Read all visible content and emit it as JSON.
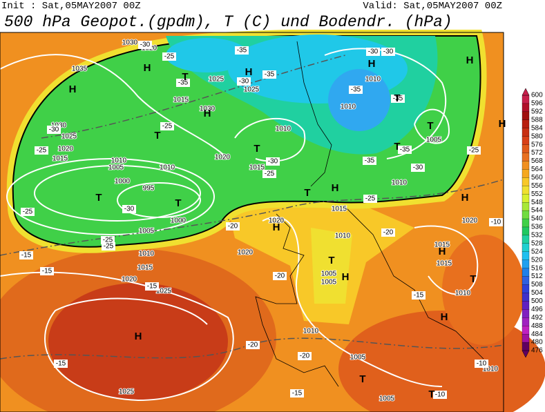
{
  "header": {
    "init": "Init : Sat,05MAY2007 00Z",
    "valid": "Valid: Sat,05MAY2007 00Z",
    "title": "500 hPa Geopot.(gpdm), T (C) und Bodendr. (hPa)"
  },
  "map": {
    "pressure_labels": [
      "1030",
      "1035",
      "1030",
      "1025",
      "1020",
      "1015",
      "1010",
      "1005",
      "1000",
      "995",
      "1000",
      "1005",
      "1010",
      "1015",
      "1020",
      "1025",
      "1025",
      "1020",
      "1025",
      "1030",
      "1015",
      "1010",
      "1020",
      "1015",
      "1010",
      "1025",
      "1010",
      "1010",
      "1005",
      "1010",
      "1015",
      "1020",
      "1020",
      "1010",
      "1005",
      "1005",
      "1015",
      "1015",
      "1010",
      "1010",
      "1005",
      "1005",
      "1010",
      "1020"
    ],
    "temperature_labels": [
      "-30",
      "-25",
      "-35",
      "-35",
      "-30",
      "-35",
      "-25",
      "-30",
      "-25",
      "-35",
      "-35",
      "-30",
      "-30",
      "-35",
      "-30",
      "-25",
      "-35",
      "-30",
      "-25",
      "-30",
      "-25",
      "-25",
      "-25",
      "-20",
      "-25",
      "-20",
      "-15",
      "-15",
      "-15",
      "-20",
      "-15",
      "-20",
      "-20",
      "-15",
      "-10",
      "-15",
      "-10",
      "-10"
    ],
    "centers": [
      "H",
      "H",
      "T",
      "H",
      "T",
      "H",
      "T",
      "T",
      "T",
      "H",
      "H",
      "T",
      "H",
      "T",
      "H",
      "H",
      "T",
      "T",
      "T",
      "H",
      "H",
      "H",
      "T",
      "H",
      "T",
      "T",
      "H"
    ]
  },
  "colorbar": {
    "labels": [
      600,
      596,
      592,
      588,
      584,
      580,
      576,
      572,
      568,
      564,
      560,
      556,
      552,
      548,
      544,
      540,
      536,
      532,
      528,
      524,
      520,
      516,
      512,
      508,
      504,
      500,
      496,
      492,
      488,
      484,
      480,
      476
    ],
    "colors": [
      "#c8204c",
      "#b0102a",
      "#a01010",
      "#b82010",
      "#c83014",
      "#d84018",
      "#e05a1a",
      "#e87020",
      "#f09020",
      "#f5a820",
      "#f8c828",
      "#f0e030",
      "#d8f030",
      "#a8e838",
      "#70dc40",
      "#40d048",
      "#20c860",
      "#20d0a0",
      "#20d0d0",
      "#20c0f0",
      "#20a0f0",
      "#2080e8",
      "#3060e0",
      "#3040d8",
      "#4030c8",
      "#6020c0",
      "#8020c0",
      "#a020c0",
      "#c020c0",
      "#a010a0",
      "#600060"
    ]
  }
}
